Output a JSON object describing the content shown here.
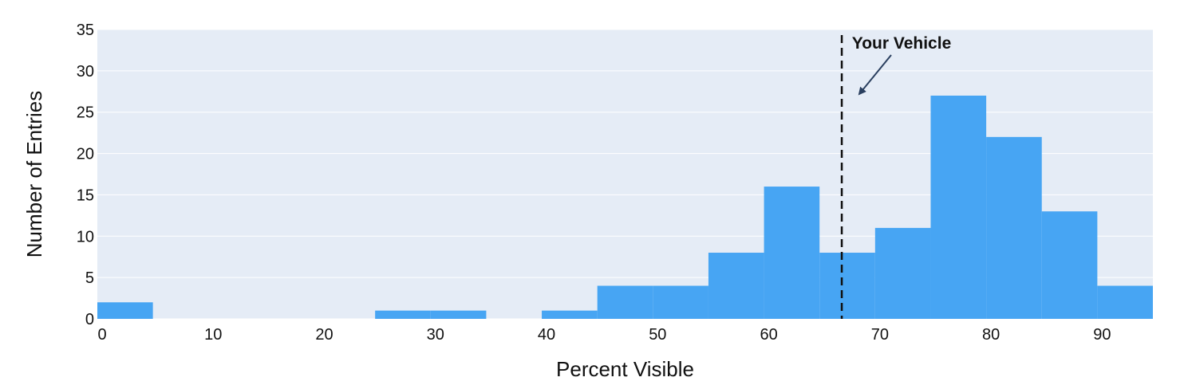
{
  "chart_data": {
    "type": "bar",
    "title": "",
    "xlabel": "Percent Visible",
    "ylabel": "Number of Entries",
    "xlim": [
      0,
      95
    ],
    "ylim": [
      0,
      35
    ],
    "grid": true,
    "bin_width": 5,
    "x_ticks": [
      0,
      10,
      20,
      30,
      40,
      50,
      60,
      70,
      80,
      90
    ],
    "y_ticks": [
      0,
      5,
      10,
      15,
      20,
      25,
      30,
      35
    ],
    "bins": [
      {
        "x0": 0,
        "x1": 5,
        "value": 2
      },
      {
        "x0": 5,
        "x1": 10,
        "value": 0
      },
      {
        "x0": 10,
        "x1": 15,
        "value": 0
      },
      {
        "x0": 15,
        "x1": 20,
        "value": 0
      },
      {
        "x0": 20,
        "x1": 25,
        "value": 0
      },
      {
        "x0": 25,
        "x1": 30,
        "value": 1
      },
      {
        "x0": 30,
        "x1": 35,
        "value": 1
      },
      {
        "x0": 35,
        "x1": 40,
        "value": 0
      },
      {
        "x0": 40,
        "x1": 45,
        "value": 1
      },
      {
        "x0": 45,
        "x1": 50,
        "value": 4
      },
      {
        "x0": 50,
        "x1": 55,
        "value": 4
      },
      {
        "x0": 55,
        "x1": 60,
        "value": 8
      },
      {
        "x0": 60,
        "x1": 65,
        "value": 16
      },
      {
        "x0": 65,
        "x1": 70,
        "value": 8
      },
      {
        "x0": 70,
        "x1": 75,
        "value": 11
      },
      {
        "x0": 75,
        "x1": 80,
        "value": 27
      },
      {
        "x0": 80,
        "x1": 85,
        "value": 22
      },
      {
        "x0": 85,
        "x1": 90,
        "value": 13
      },
      {
        "x0": 90,
        "x1": 95,
        "value": 4
      }
    ],
    "marker": {
      "label": "Your Vehicle",
      "x": 67
    },
    "colors": {
      "bar": "#47a5f3",
      "plot_bg": "#e5ecf6",
      "grid": "#ffffff",
      "marker": "#111111",
      "arrow": "#2a3f5f"
    }
  }
}
